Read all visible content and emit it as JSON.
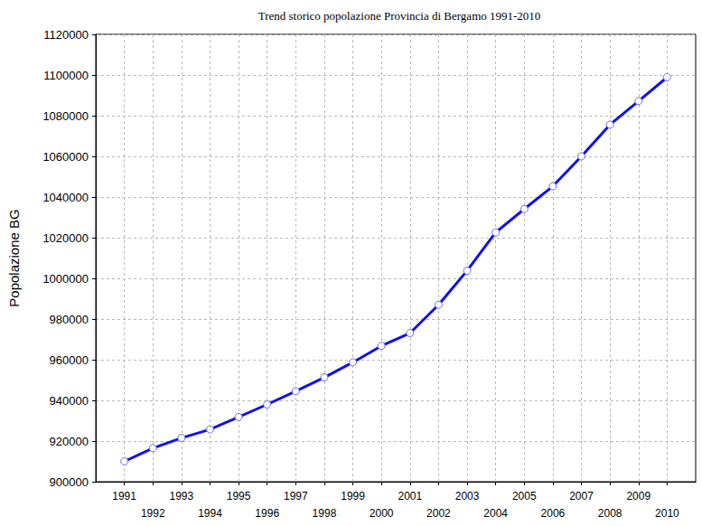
{
  "chart_data": {
    "type": "line",
    "title": "Trend storico popolazione Provincia di Bergamo 1991-2010",
    "y_label": "Popolazione BG",
    "x": [
      1991,
      1992,
      1993,
      1994,
      1995,
      1996,
      1997,
      1998,
      1999,
      2000,
      2001,
      2002,
      2003,
      2004,
      2005,
      2006,
      2007,
      2008,
      2009,
      2010
    ],
    "values": [
      910000,
      916500,
      921500,
      925700,
      931800,
      938000,
      944500,
      951300,
      958700,
      966800,
      973100,
      987000,
      1003800,
      1022600,
      1034100,
      1045300,
      1060000,
      1075600,
      1087200,
      1098900
    ],
    "color": "#1010f0",
    "marker": "circle",
    "xlim": [
      1990,
      2011
    ],
    "xticks": [
      1991,
      1992,
      1993,
      1994,
      1995,
      1996,
      1997,
      1998,
      1999,
      2000,
      2001,
      2002,
      2003,
      2004,
      2005,
      2006,
      2007,
      2008,
      2009,
      2010
    ],
    "ylim": [
      900000,
      1120000
    ],
    "yticks": [
      900000,
      920000,
      940000,
      960000,
      980000,
      1000000,
      1020000,
      1040000,
      1060000,
      1080000,
      1100000,
      1120000
    ],
    "grid": true
  }
}
